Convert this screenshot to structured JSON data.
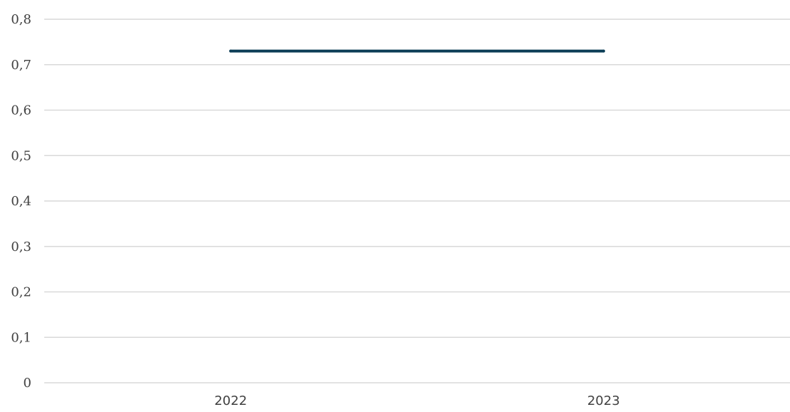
{
  "chart_data": {
    "type": "line",
    "categories": [
      "2022",
      "2023"
    ],
    "series": [
      {
        "values": [
          0.73,
          0.73
        ]
      }
    ],
    "ylim": [
      0,
      0.8
    ],
    "y_ticks": [
      0,
      0.1,
      0.2,
      0.3,
      0.4,
      0.5,
      0.6,
      0.7,
      0.8
    ],
    "y_tick_labels": [
      "0",
      "0,1",
      "0,2",
      "0,3",
      "0,4",
      "0,5",
      "0,6",
      "0,7",
      "0,8"
    ],
    "grid": true,
    "legend": "none",
    "colors": {
      "series": "#0b3d56",
      "grid": "#d9d9d9",
      "text": "#404040"
    }
  }
}
